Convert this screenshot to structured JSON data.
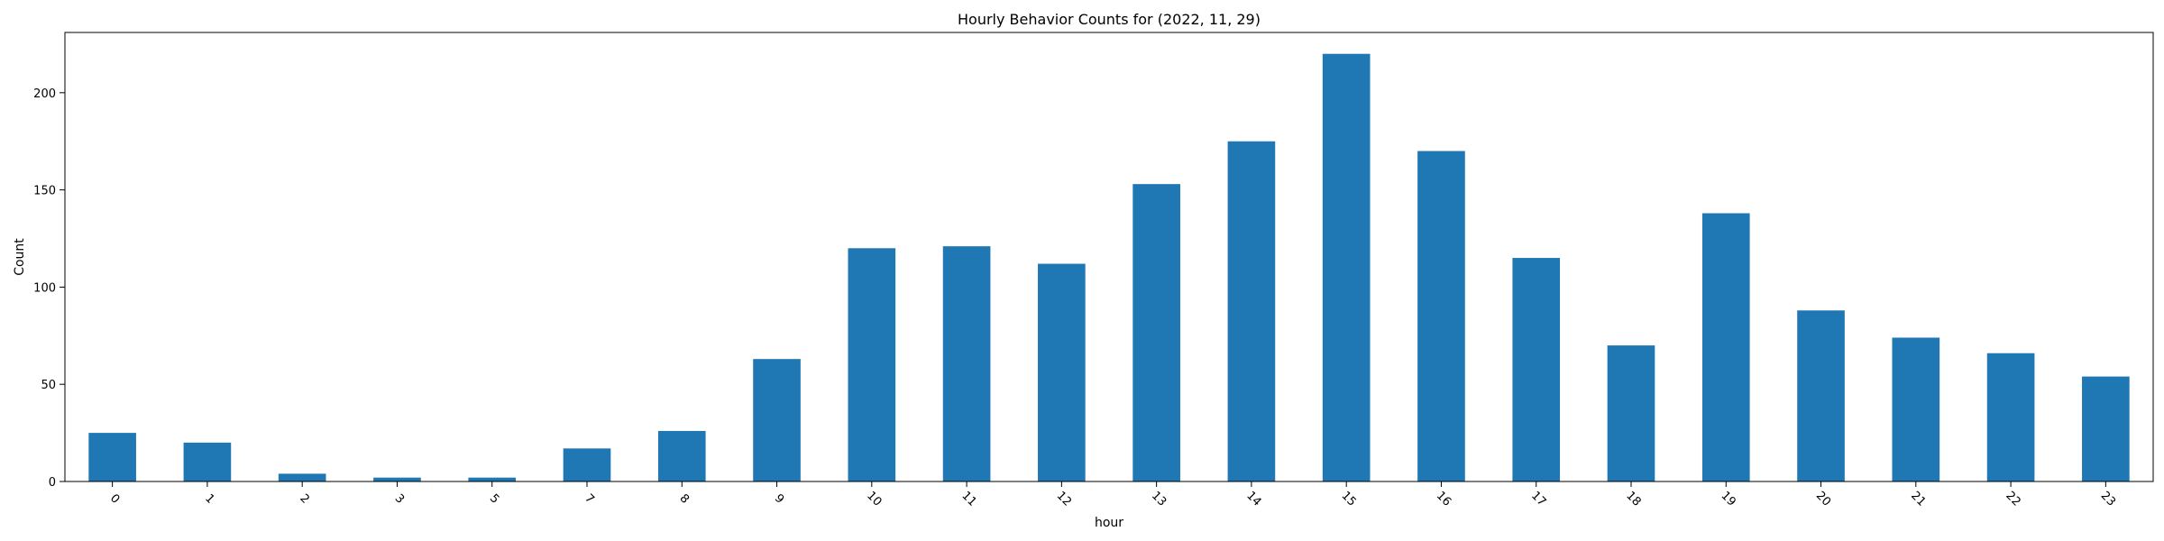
{
  "chart_data": {
    "type": "bar",
    "title": "Hourly Behavior Counts for (2022, 11, 29)",
    "xlabel": "hour",
    "ylabel": "Count",
    "categories": [
      "0",
      "1",
      "2",
      "3",
      "5",
      "7",
      "8",
      "9",
      "10",
      "11",
      "12",
      "13",
      "14",
      "15",
      "16",
      "17",
      "18",
      "19",
      "20",
      "21",
      "22",
      "23"
    ],
    "values": [
      25,
      20,
      4,
      2,
      2,
      17,
      26,
      63,
      120,
      121,
      112,
      153,
      175,
      220,
      170,
      115,
      70,
      138,
      88,
      74,
      66,
      54
    ],
    "ylim": [
      0,
      231
    ],
    "yticks": [
      0,
      50,
      100,
      150,
      200
    ],
    "bar_color": "#1f77b4",
    "grid": false,
    "legend": "none"
  }
}
